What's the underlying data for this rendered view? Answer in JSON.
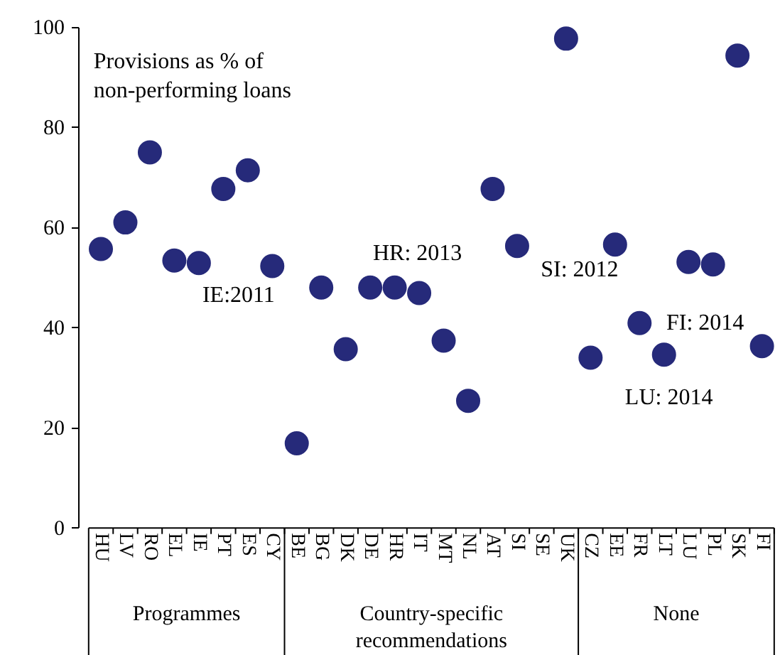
{
  "chart_data": {
    "type": "scatter",
    "title": "Provisions as % of\nnon-performing loans",
    "categories": [
      "HU",
      "LV",
      "RO",
      "EL",
      "IE",
      "PT",
      "ES",
      "CY",
      "BE",
      "BG",
      "DK",
      "DE",
      "HR",
      "IT",
      "MT",
      "NL",
      "AT",
      "SI",
      "SE",
      "UK",
      "CZ",
      "EE",
      "FR",
      "LT",
      "LU",
      "PL",
      "SK",
      "FI"
    ],
    "series": [
      {
        "color": "#262a7a",
        "values": [
          55.7,
          61,
          75,
          53.4,
          52.9,
          67.7,
          71.4,
          52.3,
          16.9,
          48,
          35.7,
          48,
          48,
          46.9,
          37.4,
          25.4,
          67.7,
          56.3,
          null,
          97.7,
          34,
          56.6,
          40.9,
          34.6,
          53.1,
          52.6,
          94.3,
          36.3
        ]
      }
    ],
    "ylim": [
      0,
      100
    ],
    "yticks": [
      0,
      20,
      40,
      60,
      80,
      100
    ],
    "grid": false,
    "marker": "circle",
    "annotations": [
      {
        "text": "IE:2011",
        "x": "IE",
        "y": 52.9
      },
      {
        "text": "HR: 2013",
        "x": "HR",
        "y": 48
      },
      {
        "text": "SI: 2012",
        "x": "SI",
        "y": 56.3
      },
      {
        "text": "FI: 2014",
        "x": "FI",
        "y": 36.3
      },
      "LU: 2014",
      "Programmes",
      "Country-specific\nrecommendations",
      "None"
    ]
  }
}
